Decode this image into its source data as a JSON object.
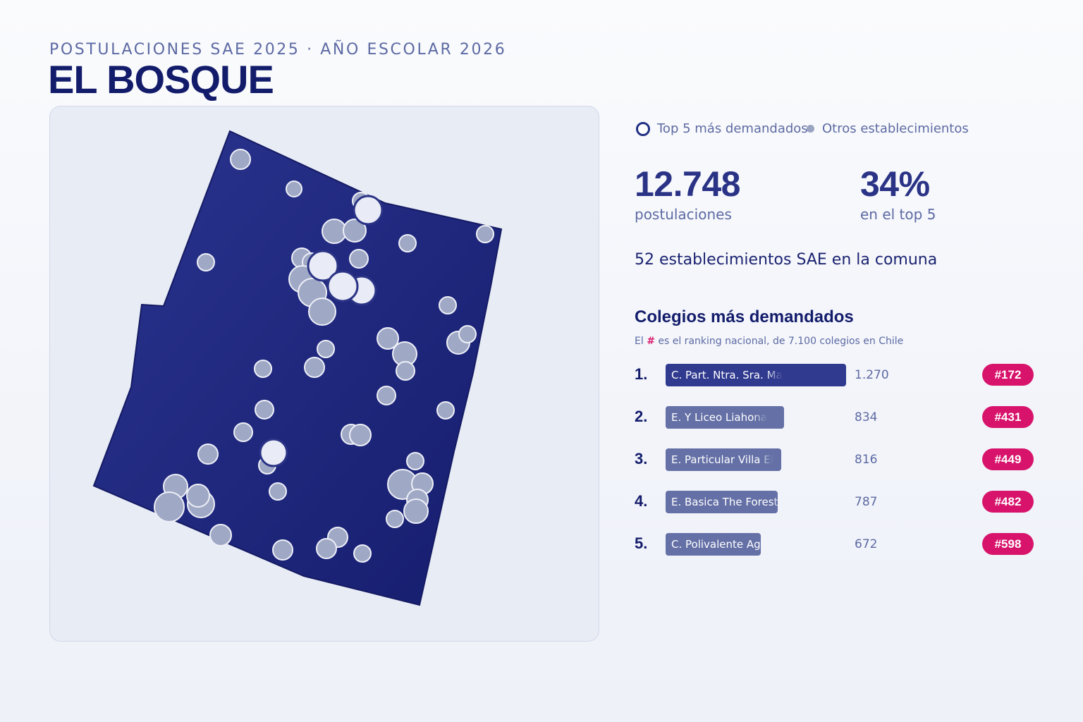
{
  "header": {
    "kicker": "POSTULACIONES SAE 2025 · AÑO ESCOLAR 2026",
    "title": "EL BOSQUE"
  },
  "legend": {
    "top5_label": "Top 5 más demandados",
    "others_label": "Otros establecimientos"
  },
  "stats": {
    "applications_value": "12.748",
    "applications_label": "postulaciones",
    "top5_share_value": "34%",
    "top5_share_label": "en el top 5",
    "schools_count_line": "52 establecimientos SAE en la comuna"
  },
  "ranking": {
    "title": "Colegios más demandados",
    "note_prefix": "El ",
    "note_hash": "#",
    "note_suffix": " es el ranking nacional, de 7.100 colegios en Chile",
    "max_value": 1270,
    "items": [
      {
        "position": "1.",
        "name": "C. Part. Ntra. Sra. Ma",
        "applications": 1270,
        "applications_label": "1.270",
        "national_rank": "#172",
        "highlight": true
      },
      {
        "position": "2.",
        "name": "E. Y Liceo Liahona",
        "applications": 834,
        "applications_label": "834",
        "national_rank": "#431",
        "highlight": false
      },
      {
        "position": "3.",
        "name": "E. Particular Villa El",
        "applications": 816,
        "applications_label": "816",
        "national_rank": "#449",
        "highlight": false
      },
      {
        "position": "4.",
        "name": "E. Basica The Forest C",
        "applications": 787,
        "applications_label": "787",
        "national_rank": "#482",
        "highlight": false
      },
      {
        "position": "5.",
        "name": "C. Polivalente Agustin",
        "applications": 672,
        "applications_label": "672",
        "national_rank": "#598",
        "highlight": false
      }
    ]
  },
  "colors": {
    "commune_fill": "#1c2479",
    "commune_fill_light": "#2a348e",
    "other_school": "#9fa8c4",
    "top5_school": "#e9ebf6",
    "badge": "#d8136b",
    "bar_top": "#303a8f",
    "bar_rest": "#6470a6"
  }
}
